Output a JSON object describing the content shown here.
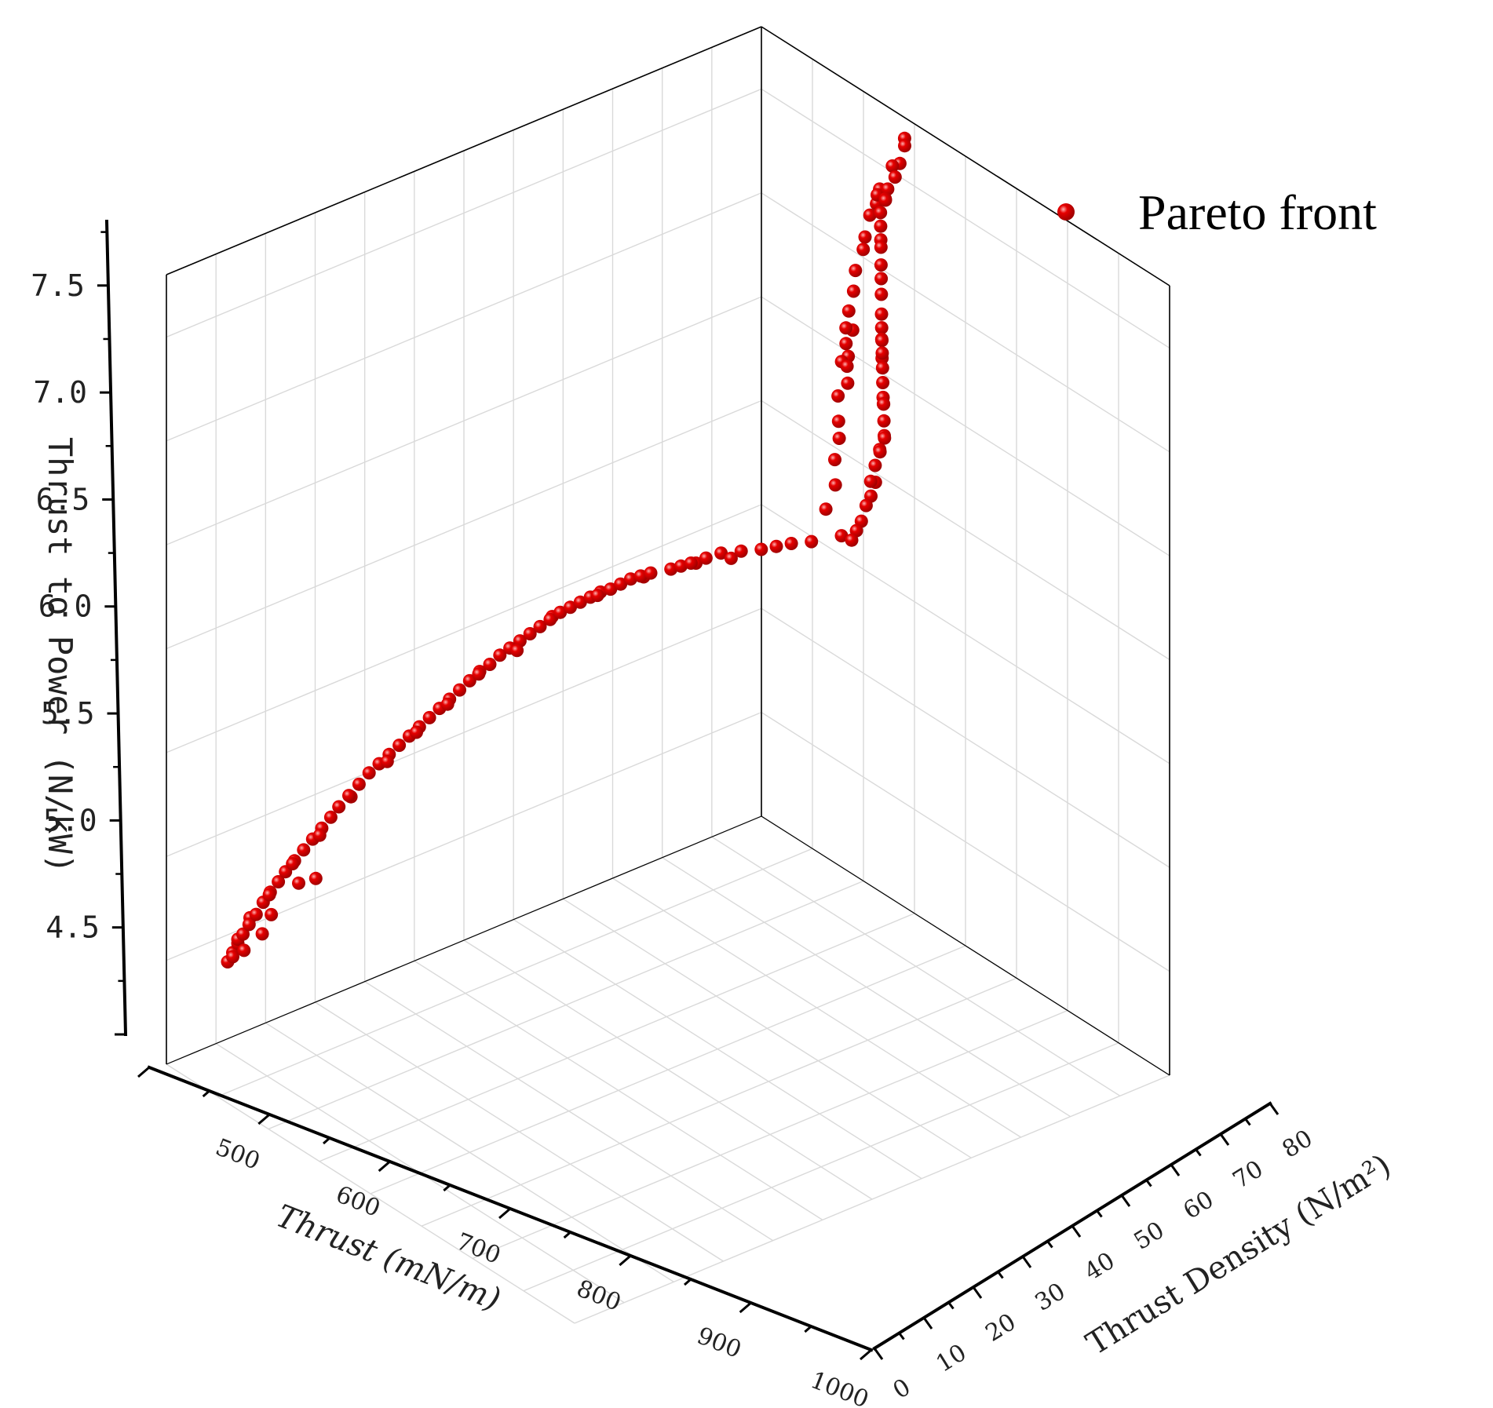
{
  "chart_data": {
    "type": "scatter",
    "dimensions": 3,
    "xlabel": "Thrust  (mN/m)",
    "ylabel": "Thrust Density (N/m²)",
    "zlabel": "Thrust  to Power  (N/kW)",
    "xlim": [
      400,
      1000
    ],
    "ylim": [
      0,
      80
    ],
    "zlim": [
      4.0,
      7.8
    ],
    "x_ticks": [
      "500",
      "600",
      "700",
      "800",
      "900",
      "1000"
    ],
    "y_ticks": [
      "0",
      "10",
      "20",
      "30",
      "40",
      "50",
      "60",
      "70",
      "80"
    ],
    "z_ticks": [
      "4.5",
      "5.0",
      "5.5",
      "6.0",
      "6.5",
      "7.0",
      "7.5"
    ],
    "grid": true,
    "legend_position": "top-right",
    "colors": {
      "series": "#e60000",
      "grid": "#d9d9d9",
      "axis": "#000000"
    },
    "series": [
      {
        "name": "Pareto front",
        "points": [
          [
            410,
            30,
            7.75
          ],
          [
            415,
            31,
            7.74
          ],
          [
            425,
            32,
            7.69
          ],
          [
            430,
            31.5,
            7.68
          ],
          [
            435,
            33,
            7.66
          ],
          [
            445,
            33.5,
            7.63
          ],
          [
            450,
            34,
            7.6
          ],
          [
            455,
            35,
            7.62
          ],
          [
            460,
            35,
            7.57
          ],
          [
            465,
            36,
            7.53
          ],
          [
            470,
            37,
            7.49
          ],
          [
            475,
            38,
            7.48
          ],
          [
            480,
            39,
            7.42
          ],
          [
            485,
            40,
            7.38
          ],
          [
            490,
            41,
            7.33
          ],
          [
            495,
            42,
            7.26
          ],
          [
            500,
            43,
            7.22
          ],
          [
            505,
            44,
            7.19
          ],
          [
            510,
            45,
            7.21
          ],
          [
            515,
            46,
            7.15
          ],
          [
            520,
            47,
            7.2
          ],
          [
            530,
            49,
            7.18
          ],
          [
            540,
            51,
            7.16
          ],
          [
            550,
            53,
            7.14
          ],
          [
            560,
            55,
            7.16
          ],
          [
            570,
            57,
            7.21
          ],
          [
            580,
            59,
            7.18
          ],
          [
            590,
            61,
            7.16
          ],
          [
            600,
            63,
            7.2
          ],
          [
            610,
            64,
            7.18
          ],
          [
            620,
            66,
            7.22
          ],
          [
            630,
            67,
            7.19
          ],
          [
            640,
            69,
            7.16
          ],
          [
            650,
            70,
            7.2
          ],
          [
            660,
            72,
            7.18
          ],
          [
            670,
            73,
            7.17
          ],
          [
            680,
            74,
            7.13
          ],
          [
            690,
            75,
            7.12
          ],
          [
            700,
            76,
            7.11
          ],
          [
            430,
            29,
            7.53
          ],
          [
            435,
            29.5,
            7.52
          ],
          [
            428,
            28,
            7.44
          ],
          [
            445,
            30,
            7.45
          ],
          [
            455,
            31,
            7.38
          ],
          [
            462,
            32,
            7.35
          ],
          [
            475,
            33,
            7.29
          ],
          [
            482,
            34,
            7.22
          ],
          [
            492,
            35,
            7.16
          ],
          [
            500,
            36,
            7.11
          ],
          [
            505,
            37,
            7.06
          ],
          [
            508,
            38,
            7.02
          ],
          [
            488,
            35,
            7.06
          ],
          [
            525,
            40,
            7.06
          ],
          [
            540,
            44,
            7.13
          ],
          [
            560,
            48,
            7.15
          ],
          [
            580,
            50,
            7.16
          ],
          [
            600,
            54,
            7.14
          ],
          [
            620,
            58,
            7.16
          ],
          [
            645,
            62,
            7.17
          ],
          [
            665,
            66,
            7.15
          ],
          [
            690,
            69,
            7.13
          ],
          [
            700,
            74,
            7.1
          ],
          [
            720,
            72,
            7.08
          ],
          [
            730,
            70,
            7.06
          ],
          [
            740,
            69,
            7.05
          ],
          [
            750,
            68,
            7.04
          ],
          [
            760,
            66,
            7.02
          ],
          [
            770,
            64,
            7.0
          ],
          [
            780,
            63,
            6.98
          ],
          [
            790,
            62,
            6.96
          ],
          [
            795,
            61,
            6.94
          ],
          [
            800,
            60,
            6.92
          ],
          [
            810,
            58,
            6.89
          ],
          [
            815,
            57,
            6.87
          ],
          [
            820,
            56,
            6.85
          ],
          [
            825,
            55,
            6.82
          ],
          [
            830,
            54,
            6.79
          ],
          [
            835,
            53,
            6.77
          ],
          [
            840,
            52,
            6.74
          ],
          [
            845,
            51,
            6.71
          ],
          [
            850,
            50,
            6.68
          ],
          [
            855,
            49,
            6.65
          ],
          [
            860,
            48,
            6.61
          ],
          [
            865,
            47,
            6.57
          ],
          [
            870,
            46,
            6.53
          ],
          [
            875,
            45,
            6.49
          ],
          [
            880,
            44,
            6.45
          ],
          [
            885,
            43,
            6.41
          ],
          [
            890,
            42,
            6.36
          ],
          [
            895,
            41,
            6.32
          ],
          [
            900,
            40,
            6.27
          ],
          [
            905,
            39,
            6.22
          ],
          [
            910,
            38,
            6.17
          ],
          [
            915,
            37,
            6.12
          ],
          [
            920,
            36,
            6.07
          ],
          [
            925,
            35,
            6.02
          ],
          [
            930,
            34,
            5.97
          ],
          [
            935,
            33,
            5.92
          ],
          [
            940,
            32,
            5.87
          ],
          [
            945,
            31,
            5.82
          ],
          [
            950,
            30,
            5.77
          ],
          [
            955,
            29,
            5.71
          ],
          [
            960,
            28,
            5.65
          ],
          [
            965,
            27,
            5.59
          ],
          [
            968,
            26,
            5.53
          ],
          [
            972,
            25,
            5.47
          ],
          [
            976,
            24,
            5.41
          ],
          [
            980,
            23,
            5.35
          ],
          [
            984,
            22,
            5.29
          ],
          [
            988,
            21,
            5.23
          ],
          [
            990,
            20,
            5.17
          ],
          [
            993,
            19,
            5.11
          ],
          [
            995,
            18,
            5.05
          ],
          [
            997,
            17,
            4.98
          ],
          [
            999,
            16,
            4.92
          ],
          [
            1000,
            15,
            4.86
          ],
          [
            1000,
            14,
            4.8
          ],
          [
            1000,
            13,
            4.74
          ],
          [
            1000,
            12,
            4.68
          ],
          [
            765,
            65,
            6.98
          ],
          [
            785,
            62,
            6.95
          ],
          [
            812,
            57,
            6.86
          ],
          [
            838,
            53,
            6.76
          ],
          [
            858,
            48,
            6.62
          ],
          [
            878,
            45,
            6.45
          ],
          [
            896,
            41,
            6.31
          ],
          [
            912,
            38,
            6.15
          ],
          [
            928,
            35,
            6.0
          ],
          [
            942,
            32,
            5.84
          ],
          [
            958,
            28,
            5.64
          ],
          [
            974,
            25,
            5.44
          ],
          [
            986,
            22,
            5.28
          ],
          [
            994,
            19,
            5.1
          ],
          [
            998,
            16,
            4.95
          ],
          [
            1000,
            14,
            4.82
          ],
          [
            1000,
            13,
            4.72
          ],
          [
            985,
            23,
            5.2
          ],
          [
            978,
            25,
            5.24
          ],
          [
            992,
            19,
            5.0
          ],
          [
            996,
            18,
            4.9
          ],
          [
            999,
            15,
            4.78
          ]
        ]
      }
    ]
  }
}
